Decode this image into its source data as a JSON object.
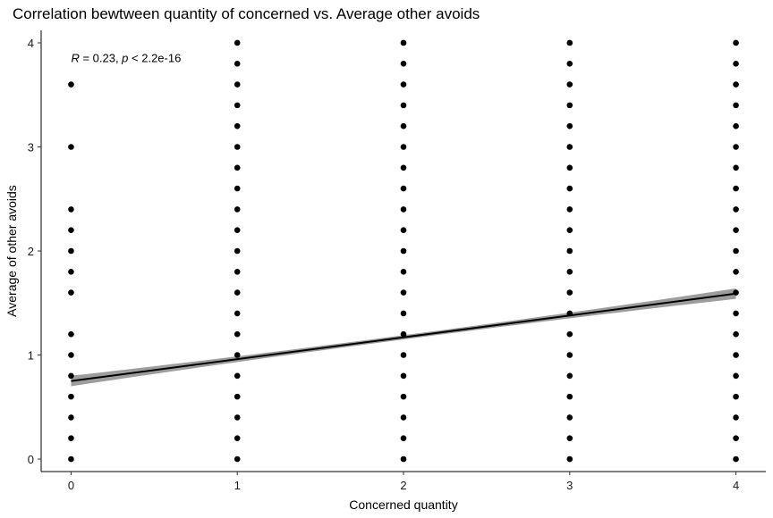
{
  "chart_data": {
    "type": "scatter",
    "title": "Correlation bewtween quantity of concerned vs. Average other avoids",
    "xlabel": "Concerned quantity",
    "ylabel": "Average of other avoids",
    "xlim": [
      -0.18,
      4.18
    ],
    "ylim": [
      -0.12,
      4.12
    ],
    "x_ticks": [
      0,
      1,
      2,
      3,
      4
    ],
    "y_ticks": [
      0,
      1,
      2,
      3,
      4
    ],
    "grid": false,
    "points": [
      {
        "x": 0,
        "y": [
          0,
          0.2,
          0.4,
          0.6,
          0.8,
          1.0,
          1.2,
          1.6,
          1.8,
          2.0,
          2.2,
          2.4,
          3.0,
          3.6
        ]
      },
      {
        "x": 1,
        "y": [
          0,
          0.2,
          0.4,
          0.6,
          0.8,
          1.0,
          1.2,
          1.4,
          1.6,
          1.8,
          2.0,
          2.2,
          2.4,
          2.6,
          2.8,
          3.0,
          3.2,
          3.4,
          3.6,
          3.8,
          4.0
        ]
      },
      {
        "x": 2,
        "y": [
          0,
          0.2,
          0.4,
          0.6,
          0.8,
          1.0,
          1.2,
          1.4,
          1.6,
          1.8,
          2.0,
          2.2,
          2.4,
          2.6,
          2.8,
          3.0,
          3.2,
          3.4,
          3.6,
          3.8,
          4.0
        ]
      },
      {
        "x": 3,
        "y": [
          0,
          0.2,
          0.4,
          0.6,
          0.8,
          1.0,
          1.2,
          1.4,
          1.6,
          1.8,
          2.0,
          2.2,
          2.4,
          2.6,
          2.8,
          3.0,
          3.2,
          3.4,
          3.6,
          3.8,
          4.0
        ]
      },
      {
        "x": 4,
        "y": [
          0,
          0.2,
          0.4,
          0.6,
          0.8,
          1.0,
          1.2,
          1.4,
          1.6,
          1.8,
          2.0,
          2.2,
          2.4,
          2.6,
          2.8,
          3.0,
          3.2,
          3.4,
          3.6,
          3.8,
          4.0
        ]
      }
    ],
    "regression": {
      "intercept": 0.75,
      "slope": 0.21,
      "ci_halfwidth_ends": 0.05,
      "ci_halfwidth_mid": 0.02,
      "line_color": "#000000",
      "band_color": "#8c8c8c"
    },
    "annotation": {
      "r_symbol": "R",
      "r_text": " = 0.23, ",
      "p_symbol": "p",
      "p_text": " < 2.2e-16",
      "x": 0,
      "y": 3.86
    },
    "point_color": "#000000"
  }
}
